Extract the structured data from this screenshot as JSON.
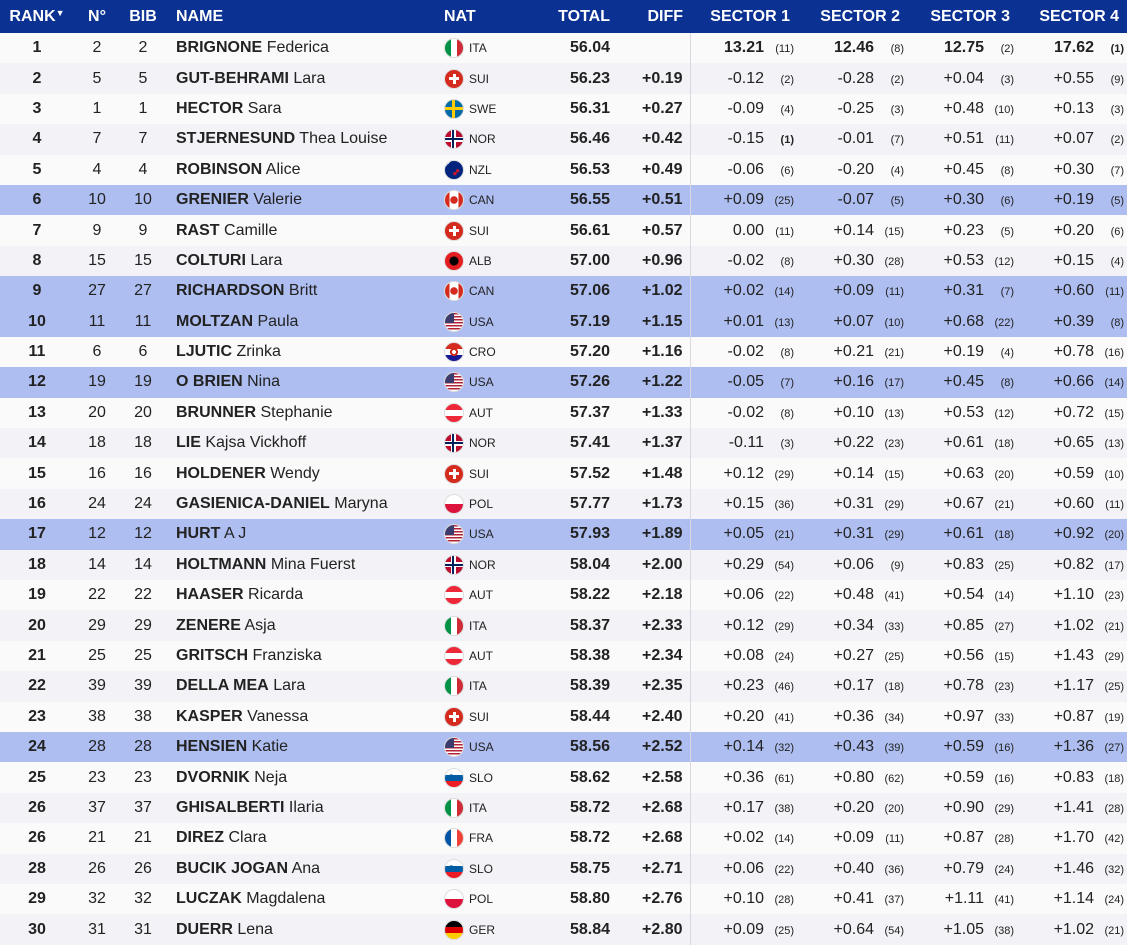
{
  "header": {
    "rank": "RANK",
    "sort_arrow": "▼",
    "no": "N°",
    "bib": "BIB",
    "name": "NAME",
    "nat": "NAT",
    "total": "TOTAL",
    "diff": "DIFF",
    "sectors": [
      "SECTOR 1",
      "SECTOR 2",
      "SECTOR 3",
      "SECTOR 4"
    ]
  },
  "colors": {
    "header_bg": "#0b3192",
    "highlight": "#aebef0",
    "row_alt": "#f2f2f7"
  },
  "rows": [
    {
      "rank": "1",
      "no": "2",
      "bib": "2",
      "last": "BRIGNONE",
      "first": "Federica",
      "nat": "ITA",
      "total": "56.04",
      "diff": "",
      "s": [
        [
          "13.21",
          "(11)"
        ],
        [
          "12.46",
          "(8)"
        ],
        [
          "12.75",
          "(2)"
        ],
        [
          "17.62",
          "(1)"
        ]
      ],
      "hl": false
    },
    {
      "rank": "2",
      "no": "5",
      "bib": "5",
      "last": "GUT-BEHRAMI",
      "first": "Lara",
      "nat": "SUI",
      "total": "56.23",
      "diff": "+0.19",
      "s": [
        [
          "-0.12",
          "(2)"
        ],
        [
          "-0.28",
          "(2)"
        ],
        [
          "+0.04",
          "(3)"
        ],
        [
          "+0.55",
          "(9)"
        ]
      ],
      "hl": false
    },
    {
      "rank": "3",
      "no": "1",
      "bib": "1",
      "last": "HECTOR",
      "first": "Sara",
      "nat": "SWE",
      "total": "56.31",
      "diff": "+0.27",
      "s": [
        [
          "-0.09",
          "(4)"
        ],
        [
          "-0.25",
          "(3)"
        ],
        [
          "+0.48",
          "(10)"
        ],
        [
          "+0.13",
          "(3)"
        ]
      ],
      "hl": false
    },
    {
      "rank": "4",
      "no": "7",
      "bib": "7",
      "last": "STJERNESUND",
      "first": "Thea Louise",
      "nat": "NOR",
      "total": "56.46",
      "diff": "+0.42",
      "s": [
        [
          "-0.15",
          "(1)"
        ],
        [
          "-0.01",
          "(7)"
        ],
        [
          "+0.51",
          "(11)"
        ],
        [
          "+0.07",
          "(2)"
        ]
      ],
      "hl": false
    },
    {
      "rank": "5",
      "no": "4",
      "bib": "4",
      "last": "ROBINSON",
      "first": "Alice",
      "nat": "NZL",
      "total": "56.53",
      "diff": "+0.49",
      "s": [
        [
          "-0.06",
          "(6)"
        ],
        [
          "-0.20",
          "(4)"
        ],
        [
          "+0.45",
          "(8)"
        ],
        [
          "+0.30",
          "(7)"
        ]
      ],
      "hl": false
    },
    {
      "rank": "6",
      "no": "10",
      "bib": "10",
      "last": "GRENIER",
      "first": "Valerie",
      "nat": "CAN",
      "total": "56.55",
      "diff": "+0.51",
      "s": [
        [
          "+0.09",
          "(25)"
        ],
        [
          "-0.07",
          "(5)"
        ],
        [
          "+0.30",
          "(6)"
        ],
        [
          "+0.19",
          "(5)"
        ]
      ],
      "hl": true
    },
    {
      "rank": "7",
      "no": "9",
      "bib": "9",
      "last": "RAST",
      "first": "Camille",
      "nat": "SUI",
      "total": "56.61",
      "diff": "+0.57",
      "s": [
        [
          "0.00",
          "(11)"
        ],
        [
          "+0.14",
          "(15)"
        ],
        [
          "+0.23",
          "(5)"
        ],
        [
          "+0.20",
          "(6)"
        ]
      ],
      "hl": false
    },
    {
      "rank": "8",
      "no": "15",
      "bib": "15",
      "last": "COLTURI",
      "first": "Lara",
      "nat": "ALB",
      "total": "57.00",
      "diff": "+0.96",
      "s": [
        [
          "-0.02",
          "(8)"
        ],
        [
          "+0.30",
          "(28)"
        ],
        [
          "+0.53",
          "(12)"
        ],
        [
          "+0.15",
          "(4)"
        ]
      ],
      "hl": false
    },
    {
      "rank": "9",
      "no": "27",
      "bib": "27",
      "last": "RICHARDSON",
      "first": "Britt",
      "nat": "CAN",
      "total": "57.06",
      "diff": "+1.02",
      "s": [
        [
          "+0.02",
          "(14)"
        ],
        [
          "+0.09",
          "(11)"
        ],
        [
          "+0.31",
          "(7)"
        ],
        [
          "+0.60",
          "(11)"
        ]
      ],
      "hl": true
    },
    {
      "rank": "10",
      "no": "11",
      "bib": "11",
      "last": "MOLTZAN",
      "first": "Paula",
      "nat": "USA",
      "total": "57.19",
      "diff": "+1.15",
      "s": [
        [
          "+0.01",
          "(13)"
        ],
        [
          "+0.07",
          "(10)"
        ],
        [
          "+0.68",
          "(22)"
        ],
        [
          "+0.39",
          "(8)"
        ]
      ],
      "hl": true
    },
    {
      "rank": "11",
      "no": "6",
      "bib": "6",
      "last": "LJUTIC",
      "first": "Zrinka",
      "nat": "CRO",
      "total": "57.20",
      "diff": "+1.16",
      "s": [
        [
          "-0.02",
          "(8)"
        ],
        [
          "+0.21",
          "(21)"
        ],
        [
          "+0.19",
          "(4)"
        ],
        [
          "+0.78",
          "(16)"
        ]
      ],
      "hl": false
    },
    {
      "rank": "12",
      "no": "19",
      "bib": "19",
      "last": "O BRIEN",
      "first": "Nina",
      "nat": "USA",
      "total": "57.26",
      "diff": "+1.22",
      "s": [
        [
          "-0.05",
          "(7)"
        ],
        [
          "+0.16",
          "(17)"
        ],
        [
          "+0.45",
          "(8)"
        ],
        [
          "+0.66",
          "(14)"
        ]
      ],
      "hl": true
    },
    {
      "rank": "13",
      "no": "20",
      "bib": "20",
      "last": "BRUNNER",
      "first": "Stephanie",
      "nat": "AUT",
      "total": "57.37",
      "diff": "+1.33",
      "s": [
        [
          "-0.02",
          "(8)"
        ],
        [
          "+0.10",
          "(13)"
        ],
        [
          "+0.53",
          "(12)"
        ],
        [
          "+0.72",
          "(15)"
        ]
      ],
      "hl": false
    },
    {
      "rank": "14",
      "no": "18",
      "bib": "18",
      "last": "LIE",
      "first": "Kajsa Vickhoff",
      "nat": "NOR",
      "total": "57.41",
      "diff": "+1.37",
      "s": [
        [
          "-0.11",
          "(3)"
        ],
        [
          "+0.22",
          "(23)"
        ],
        [
          "+0.61",
          "(18)"
        ],
        [
          "+0.65",
          "(13)"
        ]
      ],
      "hl": false
    },
    {
      "rank": "15",
      "no": "16",
      "bib": "16",
      "last": "HOLDENER",
      "first": "Wendy",
      "nat": "SUI",
      "total": "57.52",
      "diff": "+1.48",
      "s": [
        [
          "+0.12",
          "(29)"
        ],
        [
          "+0.14",
          "(15)"
        ],
        [
          "+0.63",
          "(20)"
        ],
        [
          "+0.59",
          "(10)"
        ]
      ],
      "hl": false
    },
    {
      "rank": "16",
      "no": "24",
      "bib": "24",
      "last": "GASIENICA-DANIEL",
      "first": "Maryna",
      "nat": "POL",
      "total": "57.77",
      "diff": "+1.73",
      "s": [
        [
          "+0.15",
          "(36)"
        ],
        [
          "+0.31",
          "(29)"
        ],
        [
          "+0.67",
          "(21)"
        ],
        [
          "+0.60",
          "(11)"
        ]
      ],
      "hl": false
    },
    {
      "rank": "17",
      "no": "12",
      "bib": "12",
      "last": "HURT",
      "first": "A J",
      "nat": "USA",
      "total": "57.93",
      "diff": "+1.89",
      "s": [
        [
          "+0.05",
          "(21)"
        ],
        [
          "+0.31",
          "(29)"
        ],
        [
          "+0.61",
          "(18)"
        ],
        [
          "+0.92",
          "(20)"
        ]
      ],
      "hl": true
    },
    {
      "rank": "18",
      "no": "14",
      "bib": "14",
      "last": "HOLTMANN",
      "first": "Mina Fuerst",
      "nat": "NOR",
      "total": "58.04",
      "diff": "+2.00",
      "s": [
        [
          "+0.29",
          "(54)"
        ],
        [
          "+0.06",
          "(9)"
        ],
        [
          "+0.83",
          "(25)"
        ],
        [
          "+0.82",
          "(17)"
        ]
      ],
      "hl": false
    },
    {
      "rank": "19",
      "no": "22",
      "bib": "22",
      "last": "HAASER",
      "first": "Ricarda",
      "nat": "AUT",
      "total": "58.22",
      "diff": "+2.18",
      "s": [
        [
          "+0.06",
          "(22)"
        ],
        [
          "+0.48",
          "(41)"
        ],
        [
          "+0.54",
          "(14)"
        ],
        [
          "+1.10",
          "(23)"
        ]
      ],
      "hl": false
    },
    {
      "rank": "20",
      "no": "29",
      "bib": "29",
      "last": "ZENERE",
      "first": "Asja",
      "nat": "ITA",
      "total": "58.37",
      "diff": "+2.33",
      "s": [
        [
          "+0.12",
          "(29)"
        ],
        [
          "+0.34",
          "(33)"
        ],
        [
          "+0.85",
          "(27)"
        ],
        [
          "+1.02",
          "(21)"
        ]
      ],
      "hl": false
    },
    {
      "rank": "21",
      "no": "25",
      "bib": "25",
      "last": "GRITSCH",
      "first": "Franziska",
      "nat": "AUT",
      "total": "58.38",
      "diff": "+2.34",
      "s": [
        [
          "+0.08",
          "(24)"
        ],
        [
          "+0.27",
          "(25)"
        ],
        [
          "+0.56",
          "(15)"
        ],
        [
          "+1.43",
          "(29)"
        ]
      ],
      "hl": false
    },
    {
      "rank": "22",
      "no": "39",
      "bib": "39",
      "last": "DELLA MEA",
      "first": "Lara",
      "nat": "ITA",
      "total": "58.39",
      "diff": "+2.35",
      "s": [
        [
          "+0.23",
          "(46)"
        ],
        [
          "+0.17",
          "(18)"
        ],
        [
          "+0.78",
          "(23)"
        ],
        [
          "+1.17",
          "(25)"
        ]
      ],
      "hl": false
    },
    {
      "rank": "23",
      "no": "38",
      "bib": "38",
      "last": "KASPER",
      "first": "Vanessa",
      "nat": "SUI",
      "total": "58.44",
      "diff": "+2.40",
      "s": [
        [
          "+0.20",
          "(41)"
        ],
        [
          "+0.36",
          "(34)"
        ],
        [
          "+0.97",
          "(33)"
        ],
        [
          "+0.87",
          "(19)"
        ]
      ],
      "hl": false
    },
    {
      "rank": "24",
      "no": "28",
      "bib": "28",
      "last": "HENSIEN",
      "first": "Katie",
      "nat": "USA",
      "total": "58.56",
      "diff": "+2.52",
      "s": [
        [
          "+0.14",
          "(32)"
        ],
        [
          "+0.43",
          "(39)"
        ],
        [
          "+0.59",
          "(16)"
        ],
        [
          "+1.36",
          "(27)"
        ]
      ],
      "hl": true
    },
    {
      "rank": "25",
      "no": "23",
      "bib": "23",
      "last": "DVORNIK",
      "first": "Neja",
      "nat": "SLO",
      "total": "58.62",
      "diff": "+2.58",
      "s": [
        [
          "+0.36",
          "(61)"
        ],
        [
          "+0.80",
          "(62)"
        ],
        [
          "+0.59",
          "(16)"
        ],
        [
          "+0.83",
          "(18)"
        ]
      ],
      "hl": false
    },
    {
      "rank": "26",
      "no": "37",
      "bib": "37",
      "last": "GHISALBERTI",
      "first": "Ilaria",
      "nat": "ITA",
      "total": "58.72",
      "diff": "+2.68",
      "s": [
        [
          "+0.17",
          "(38)"
        ],
        [
          "+0.20",
          "(20)"
        ],
        [
          "+0.90",
          "(29)"
        ],
        [
          "+1.41",
          "(28)"
        ]
      ],
      "hl": false
    },
    {
      "rank": "26",
      "no": "21",
      "bib": "21",
      "last": "DIREZ",
      "first": "Clara",
      "nat": "FRA",
      "total": "58.72",
      "diff": "+2.68",
      "s": [
        [
          "+0.02",
          "(14)"
        ],
        [
          "+0.09",
          "(11)"
        ],
        [
          "+0.87",
          "(28)"
        ],
        [
          "+1.70",
          "(42)"
        ]
      ],
      "hl": false
    },
    {
      "rank": "28",
      "no": "26",
      "bib": "26",
      "last": "BUCIK JOGAN",
      "first": "Ana",
      "nat": "SLO",
      "total": "58.75",
      "diff": "+2.71",
      "s": [
        [
          "+0.06",
          "(22)"
        ],
        [
          "+0.40",
          "(36)"
        ],
        [
          "+0.79",
          "(24)"
        ],
        [
          "+1.46",
          "(32)"
        ]
      ],
      "hl": false
    },
    {
      "rank": "29",
      "no": "32",
      "bib": "32",
      "last": "LUCZAK",
      "first": "Magdalena",
      "nat": "POL",
      "total": "58.80",
      "diff": "+2.76",
      "s": [
        [
          "+0.10",
          "(28)"
        ],
        [
          "+0.41",
          "(37)"
        ],
        [
          "+1.11",
          "(41)"
        ],
        [
          "+1.14",
          "(24)"
        ]
      ],
      "hl": false
    },
    {
      "rank": "30",
      "no": "31",
      "bib": "31",
      "last": "DUERR",
      "first": "Lena",
      "nat": "GER",
      "total": "58.84",
      "diff": "+2.80",
      "s": [
        [
          "+0.09",
          "(25)"
        ],
        [
          "+0.64",
          "(54)"
        ],
        [
          "+1.05",
          "(38)"
        ],
        [
          "+1.02",
          "(21)"
        ]
      ],
      "hl": false
    }
  ]
}
